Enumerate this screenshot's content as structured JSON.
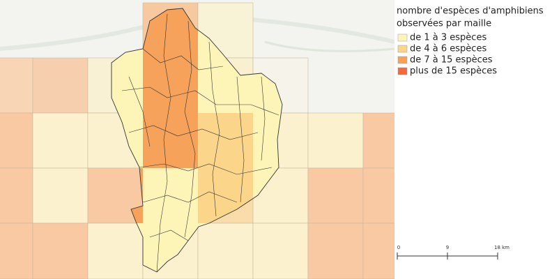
{
  "legend": {
    "title_lines": [
      "nombre d'espèces d'amphibiens",
      "observées par maille"
    ],
    "items": [
      {
        "label": "de 1 à 3 espèces",
        "color": "#fdf5b8"
      },
      {
        "label": "de 4 à 6 espèces",
        "color": "#fbd68a"
      },
      {
        "label": "de 7 à 15 espèces",
        "color": "#f6a25a"
      },
      {
        "label": "plus de 15 espèces",
        "color": "#f26a3d"
      }
    ]
  },
  "scale_bar": {
    "labels": [
      "0",
      "9",
      "18 km"
    ]
  }
}
